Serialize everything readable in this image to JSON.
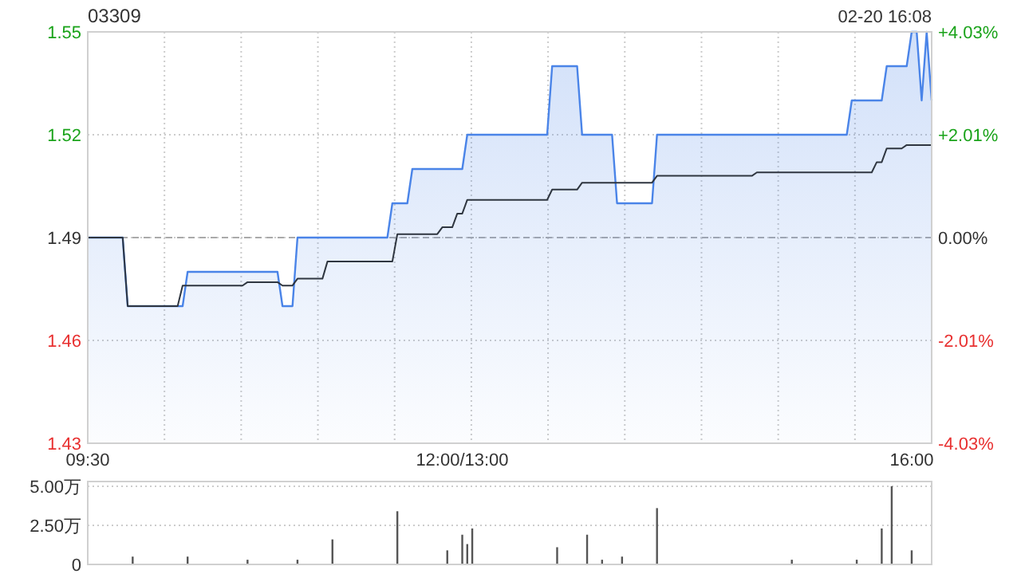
{
  "chart_data": [
    {
      "type": "area",
      "title": "03309",
      "annotations": [
        "02-20 16:08"
      ],
      "categories": [
        "09:30",
        null,
        null,
        null,
        null,
        null,
        null,
        null,
        null,
        null,
        null,
        null,
        null,
        null,
        null,
        null,
        null,
        null,
        null,
        null,
        null,
        null,
        null,
        null,
        null,
        null,
        null,
        null,
        null,
        null,
        null,
        null,
        null,
        null,
        null,
        null,
        null,
        null,
        null,
        null,
        null,
        null,
        null,
        null,
        null,
        null,
        null,
        null,
        null,
        null,
        null,
        null,
        null,
        null,
        null,
        null,
        null,
        null,
        null,
        null,
        null,
        null,
        null,
        null,
        null,
        null,
        null,
        null,
        null,
        null,
        null,
        null,
        null,
        null,
        null,
        "12:00/13:00",
        null,
        null,
        null,
        null,
        null,
        null,
        null,
        null,
        null,
        null,
        null,
        null,
        null,
        null,
        null,
        null,
        null,
        null,
        null,
        null,
        null,
        null,
        null,
        null,
        null,
        null,
        null,
        null,
        null,
        null,
        null,
        null,
        null,
        null,
        null,
        null,
        null,
        null,
        null,
        null,
        null,
        null,
        null,
        null,
        null,
        null,
        null,
        null,
        null,
        null,
        null,
        null,
        null,
        null,
        null,
        null,
        null,
        null,
        null,
        null,
        null,
        null,
        null,
        null,
        null,
        null,
        null,
        null,
        null,
        null,
        null,
        null,
        null,
        null,
        null,
        null,
        null,
        null,
        null,
        null,
        null,
        null,
        null,
        null,
        null,
        null,
        null,
        null,
        null,
        "16:00",
        null,
        null,
        null,
        null
      ],
      "ylim": [
        1.43,
        1.55
      ],
      "yticks": [
        1.43,
        1.46,
        1.49,
        1.52,
        1.55
      ],
      "y2lim": [
        -4.03,
        4.03
      ],
      "y2ticks": [
        {
          "value": -4.03,
          "label": "-4.03%"
        },
        {
          "value": -2.01,
          "label": "-2.01%"
        },
        {
          "value": 0,
          "label": "0.00%"
        },
        {
          "value": 2.01,
          "label": "+2.01%"
        },
        {
          "value": 4.03,
          "label": "+4.03%"
        }
      ],
      "ref_lines": [
        {
          "axis": "y",
          "value": 1.49,
          "color": "#aaaaaa",
          "line_style": "dashed"
        }
      ],
      "grid": true,
      "series": [
        {
          "color": "#4a84e8",
          "values": [
            1.49,
            1.49,
            1.49,
            1.49,
            1.49,
            1.49,
            1.49,
            1.49,
            1.47,
            1.47,
            1.47,
            1.47,
            1.47,
            1.47,
            1.47,
            1.47,
            1.47,
            1.47,
            1.47,
            1.47,
            1.48,
            1.48,
            1.48,
            1.48,
            1.48,
            1.48,
            1.48,
            1.48,
            1.48,
            1.48,
            1.48,
            1.48,
            1.48,
            1.48,
            1.48,
            1.48,
            1.48,
            1.48,
            1.48,
            1.47,
            1.47,
            1.47,
            1.49,
            1.49,
            1.49,
            1.49,
            1.49,
            1.49,
            1.49,
            1.49,
            1.49,
            1.49,
            1.49,
            1.49,
            1.49,
            1.49,
            1.49,
            1.49,
            1.49,
            1.49,
            1.49,
            1.5,
            1.5,
            1.5,
            1.5,
            1.51,
            1.51,
            1.51,
            1.51,
            1.51,
            1.51,
            1.51,
            1.51,
            1.51,
            1.51,
            1.51,
            1.52,
            1.52,
            1.52,
            1.52,
            1.52,
            1.52,
            1.52,
            1.52,
            1.52,
            1.52,
            1.52,
            1.52,
            1.52,
            1.52,
            1.52,
            1.52,
            1.52,
            1.54,
            1.54,
            1.54,
            1.54,
            1.54,
            1.54,
            1.52,
            1.52,
            1.52,
            1.52,
            1.52,
            1.52,
            1.52,
            1.5,
            1.5,
            1.5,
            1.5,
            1.5,
            1.5,
            1.5,
            1.5,
            1.52,
            1.52,
            1.52,
            1.52,
            1.52,
            1.52,
            1.52,
            1.52,
            1.52,
            1.52,
            1.52,
            1.52,
            1.52,
            1.52,
            1.52,
            1.52,
            1.52,
            1.52,
            1.52,
            1.52,
            1.52,
            1.52,
            1.52,
            1.52,
            1.52,
            1.52,
            1.52,
            1.52,
            1.52,
            1.52,
            1.52,
            1.52,
            1.52,
            1.52,
            1.52,
            1.52,
            1.52,
            1.52,
            1.52,
            1.53,
            1.53,
            1.53,
            1.53,
            1.53,
            1.53,
            1.53,
            1.54,
            1.54,
            1.54,
            1.54,
            1.54,
            1.55,
            1.55,
            1.53,
            1.55,
            1.53
          ]
        },
        {
          "type": "line",
          "color": "#2f3640",
          "values": [
            1.49,
            1.49,
            1.49,
            1.49,
            1.49,
            1.49,
            1.49,
            1.49,
            1.47,
            1.47,
            1.47,
            1.47,
            1.47,
            1.47,
            1.47,
            1.47,
            1.47,
            1.47,
            1.47,
            1.476,
            1.476,
            1.476,
            1.476,
            1.476,
            1.476,
            1.476,
            1.476,
            1.476,
            1.476,
            1.476,
            1.476,
            1.476,
            1.477,
            1.477,
            1.477,
            1.477,
            1.477,
            1.477,
            1.477,
            1.476,
            1.476,
            1.476,
            1.478,
            1.478,
            1.478,
            1.478,
            1.478,
            1.478,
            1.483,
            1.483,
            1.483,
            1.483,
            1.483,
            1.483,
            1.483,
            1.483,
            1.483,
            1.483,
            1.483,
            1.483,
            1.483,
            1.483,
            1.491,
            1.491,
            1.491,
            1.491,
            1.491,
            1.491,
            1.491,
            1.491,
            1.491,
            1.493,
            1.493,
            1.493,
            1.497,
            1.497,
            1.501,
            1.501,
            1.501,
            1.501,
            1.501,
            1.501,
            1.501,
            1.501,
            1.501,
            1.501,
            1.501,
            1.501,
            1.501,
            1.501,
            1.501,
            1.501,
            1.501,
            1.504,
            1.504,
            1.504,
            1.504,
            1.504,
            1.504,
            1.506,
            1.506,
            1.506,
            1.506,
            1.506,
            1.506,
            1.506,
            1.506,
            1.506,
            1.506,
            1.506,
            1.506,
            1.506,
            1.506,
            1.506,
            1.508,
            1.508,
            1.508,
            1.508,
            1.508,
            1.508,
            1.508,
            1.508,
            1.508,
            1.508,
            1.508,
            1.508,
            1.508,
            1.508,
            1.508,
            1.508,
            1.508,
            1.508,
            1.508,
            1.508,
            1.509,
            1.509,
            1.509,
            1.509,
            1.509,
            1.509,
            1.509,
            1.509,
            1.509,
            1.509,
            1.509,
            1.509,
            1.509,
            1.509,
            1.509,
            1.509,
            1.509,
            1.509,
            1.509,
            1.509,
            1.509,
            1.509,
            1.509,
            1.509,
            1.512,
            1.512,
            1.516,
            1.516,
            1.516,
            1.516,
            1.517,
            1.517,
            1.517,
            1.517,
            1.517,
            1.517
          ]
        }
      ]
    },
    {
      "type": "bar",
      "tick_labels": "y",
      "grid": "y",
      "color": "#555555",
      "categories": [
        null,
        null,
        null,
        null,
        null,
        null,
        null,
        null,
        null,
        null,
        null,
        null,
        null,
        null,
        null,
        null,
        null,
        null,
        null,
        null,
        null,
        null,
        null,
        null,
        null,
        null,
        null,
        null,
        null,
        null,
        null,
        null,
        null,
        null,
        null,
        null,
        null,
        null,
        null,
        null,
        null,
        null,
        null,
        null,
        null,
        null,
        null,
        null,
        null,
        null,
        null,
        null,
        null,
        null,
        null,
        null,
        null,
        null,
        null,
        null,
        null,
        null,
        null,
        null,
        null,
        null,
        null,
        null,
        null,
        null,
        null,
        null,
        null,
        null,
        null,
        null,
        null,
        null,
        null,
        null,
        null,
        null,
        null,
        null,
        null,
        null,
        null,
        null,
        null,
        null,
        null,
        null,
        null,
        null,
        null,
        null,
        null,
        null,
        null,
        null,
        null,
        null,
        null,
        null,
        null,
        null,
        null,
        null,
        null,
        null,
        null,
        null,
        null,
        null,
        null,
        null,
        null,
        null,
        null,
        null,
        null,
        null,
        null,
        null,
        null,
        null,
        null,
        null,
        null,
        null,
        null,
        null,
        null,
        null,
        null,
        null,
        null,
        null,
        null,
        null,
        null,
        null,
        null,
        null,
        null,
        null,
        null,
        null,
        null,
        null,
        null,
        null,
        null,
        null,
        null,
        null,
        null,
        null,
        null,
        null,
        null,
        null,
        null,
        null,
        null,
        null,
        null,
        null,
        null,
        null
      ],
      "ylim": [
        0,
        5.3
      ],
      "yticks": [
        0,
        {
          "value": 2.5,
          "label": "2.50万"
        },
        {
          "value": 5,
          "label": "5.00万"
        }
      ],
      "values": [
        null,
        null,
        null,
        null,
        null,
        null,
        null,
        null,
        null,
        0.5,
        null,
        null,
        null,
        null,
        null,
        null,
        null,
        null,
        null,
        null,
        0.5,
        null,
        null,
        null,
        null,
        null,
        null,
        null,
        null,
        null,
        null,
        null,
        0.3,
        null,
        null,
        null,
        null,
        null,
        null,
        null,
        null,
        null,
        0.3,
        null,
        null,
        null,
        null,
        null,
        null,
        1.6,
        null,
        null,
        null,
        null,
        null,
        null,
        null,
        null,
        null,
        null,
        null,
        null,
        3.4,
        null,
        null,
        null,
        null,
        null,
        null,
        null,
        null,
        null,
        0.9,
        null,
        null,
        1.9,
        1.3,
        2.3,
        null,
        null,
        null,
        null,
        null,
        null,
        null,
        null,
        null,
        null,
        null,
        null,
        null,
        null,
        null,
        null,
        1.1,
        null,
        null,
        null,
        null,
        null,
        1.9,
        null,
        null,
        0.3,
        null,
        null,
        null,
        0.5,
        null,
        null,
        null,
        null,
        null,
        null,
        3.6,
        null,
        null,
        null,
        null,
        null,
        null,
        null,
        null,
        null,
        null,
        null,
        null,
        null,
        null,
        null,
        null,
        null,
        null,
        null,
        null,
        null,
        null,
        null,
        null,
        null,
        null,
        0.3,
        null,
        null,
        null,
        null,
        null,
        null,
        null,
        null,
        null,
        null,
        null,
        null,
        0.3,
        null,
        null,
        null,
        null,
        2.3,
        null,
        5.0,
        null,
        null,
        null,
        0.9,
        null,
        null,
        null,
        null
      ]
    }
  ]
}
